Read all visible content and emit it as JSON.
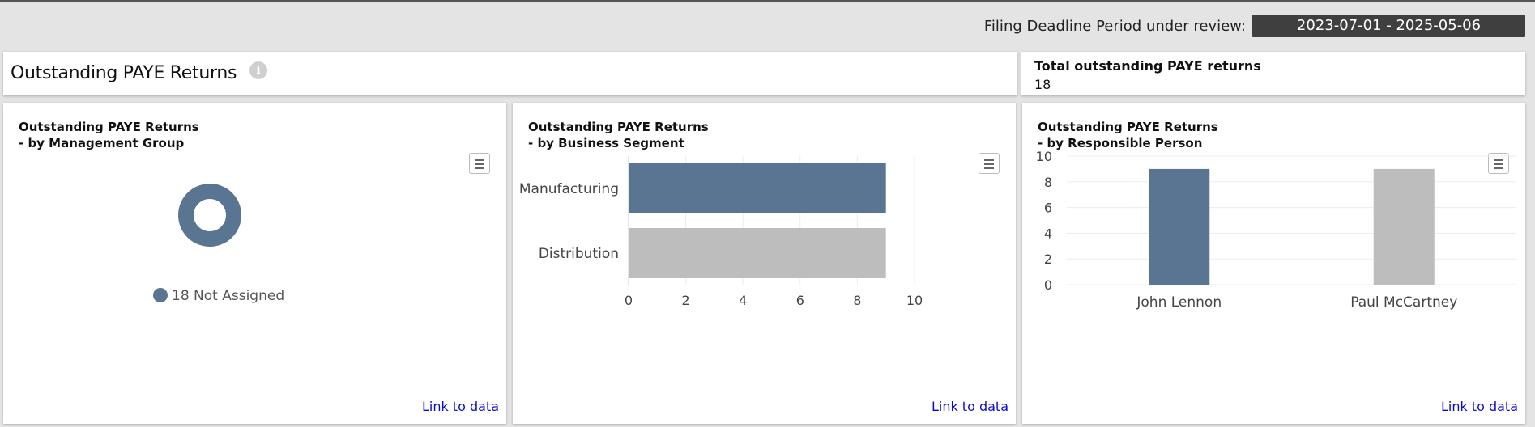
{
  "header": {
    "period_label": "Filing Deadline Period under review:",
    "period_value": "2023-07-01 - 2025-05-06"
  },
  "title_card": {
    "title": "Outstanding PAYE Returns",
    "info_glyph": "i"
  },
  "total_card": {
    "label": "Total outstanding PAYE returns",
    "value": "18"
  },
  "colors": {
    "primary": "#5a7591",
    "secondary": "#bdbdbd",
    "link": "#0b0bd0"
  },
  "charts": [
    {
      "title_line1": "Outstanding PAYE Returns",
      "title_line2": "- by Management Group",
      "link_label": "Link to data",
      "legend_label": "18 Not Assigned"
    },
    {
      "title_line1": "Outstanding PAYE Returns",
      "title_line2": "- by Business Segment",
      "link_label": "Link to data"
    },
    {
      "title_line1": "Outstanding PAYE Returns",
      "title_line2": "- by Responsible Person",
      "link_label": "Link to data"
    }
  ],
  "chart_data": [
    {
      "type": "pie",
      "variant": "donut",
      "title": "Outstanding PAYE Returns - by Management Group",
      "categories": [
        "Not Assigned"
      ],
      "values": [
        18
      ],
      "legend": "bottom"
    },
    {
      "type": "bar",
      "orientation": "horizontal",
      "title": "Outstanding PAYE Returns - by Business Segment",
      "categories": [
        "Manufacturing",
        "Distribution"
      ],
      "values": [
        9,
        9
      ],
      "xlim": [
        0,
        10
      ],
      "xticks": [
        "0",
        "2",
        "4",
        "6",
        "8",
        "10"
      ],
      "grid": true
    },
    {
      "type": "bar",
      "orientation": "vertical",
      "title": "Outstanding PAYE Returns - by Responsible Person",
      "categories": [
        "John Lennon",
        "Paul McCartney"
      ],
      "values": [
        9,
        9
      ],
      "ylim": [
        0,
        10
      ],
      "yticks": [
        "0",
        "2",
        "4",
        "6",
        "8",
        "10"
      ],
      "grid": true
    }
  ]
}
